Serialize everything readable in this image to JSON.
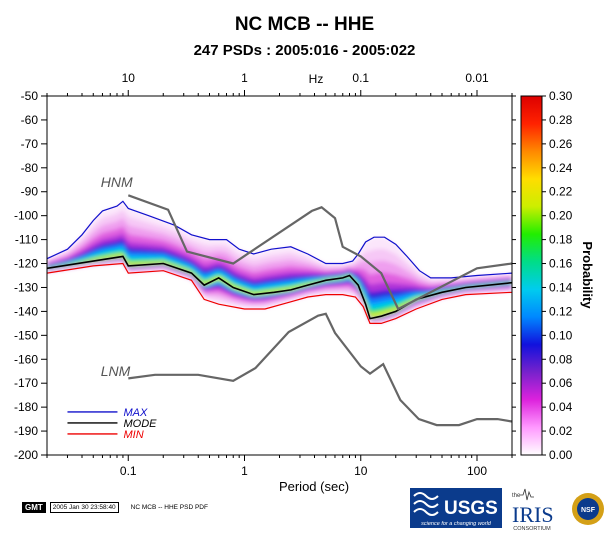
{
  "title": "NC MCB -- HHE",
  "subtitle": "247 PSDs : 2005:016 - 2005:022",
  "chart_data": {
    "type": "heatmap",
    "xlabel": "Period (sec)",
    "x_scale": "log",
    "xlim": [
      0.02,
      200
    ],
    "x_ticks": [
      0.1,
      1,
      10,
      100
    ],
    "x_tick_labels": [
      "0.1",
      "1",
      "10",
      "100"
    ],
    "top_axis_label": "Hz",
    "top_ticks_hz": [
      10,
      1,
      0.1,
      0.01
    ],
    "top_tick_labels": [
      "10",
      "1",
      "0.1",
      "0.01"
    ],
    "ylim": [
      -200,
      -50
    ],
    "y_ticks": [
      -50,
      -60,
      -70,
      -80,
      -90,
      -100,
      -110,
      -120,
      -130,
      -140,
      -150,
      -160,
      -170,
      -180,
      -190,
      -200
    ],
    "colorbar": {
      "label": "Probability",
      "range": [
        0,
        0.3
      ],
      "ticks": [
        "0.30",
        "0.28",
        "0.26",
        "0.24",
        "0.22",
        "0.20",
        "0.18",
        "0.16",
        "0.14",
        "0.12",
        "0.10",
        "0.08",
        "0.06",
        "0.04",
        "0.02",
        "0.00"
      ],
      "colors": [
        "#ffffff",
        "#ff99ff",
        "#dd22dd",
        "#7722cc",
        "#1111dd",
        "#0088ff",
        "#00ccee",
        "#00dd88",
        "#22ee00",
        "#ccee00",
        "#ffdd00",
        "#ff8800",
        "#ff2200",
        "#dd0000"
      ]
    },
    "annotations": [
      {
        "text": "HNM",
        "x": 0.058,
        "y": -88
      },
      {
        "text": "LNM",
        "x": 0.058,
        "y": -167
      }
    ],
    "legend": [
      {
        "name": "MAX",
        "color": "#1010cc"
      },
      {
        "name": "MODE",
        "color": "#000000"
      },
      {
        "name": "MIN",
        "color": "#ee0000"
      }
    ],
    "series": [
      {
        "name": "MAX",
        "color": "#1010cc",
        "points": [
          [
            0.02,
            -118
          ],
          [
            0.03,
            -114
          ],
          [
            0.04,
            -108
          ],
          [
            0.05,
            -102
          ],
          [
            0.06,
            -98
          ],
          [
            0.08,
            -96
          ],
          [
            0.09,
            -94
          ],
          [
            0.1,
            -97
          ],
          [
            0.15,
            -100
          ],
          [
            0.25,
            -104
          ],
          [
            0.35,
            -108
          ],
          [
            0.5,
            -110
          ],
          [
            0.7,
            -110
          ],
          [
            0.9,
            -114
          ],
          [
            1.2,
            -116
          ],
          [
            1.7,
            -114
          ],
          [
            2.5,
            -113
          ],
          [
            3.5,
            -116
          ],
          [
            5,
            -120
          ],
          [
            7,
            -120
          ],
          [
            8.5,
            -119
          ],
          [
            9.5,
            -116
          ],
          [
            11,
            -111
          ],
          [
            13,
            -109
          ],
          [
            16,
            -109
          ],
          [
            20,
            -112
          ],
          [
            25,
            -117
          ],
          [
            32,
            -123
          ],
          [
            40,
            -126
          ],
          [
            60,
            -126
          ],
          [
            100,
            -125
          ],
          [
            200,
            -124
          ]
        ]
      },
      {
        "name": "MODE",
        "color": "#000000",
        "points": [
          [
            0.02,
            -122
          ],
          [
            0.05,
            -119
          ],
          [
            0.09,
            -117
          ],
          [
            0.1,
            -121
          ],
          [
            0.2,
            -120
          ],
          [
            0.35,
            -124
          ],
          [
            0.45,
            -129
          ],
          [
            0.6,
            -126
          ],
          [
            0.8,
            -130
          ],
          [
            1.2,
            -133
          ],
          [
            1.8,
            -132
          ],
          [
            2.5,
            -131
          ],
          [
            3.5,
            -129
          ],
          [
            5,
            -127
          ],
          [
            7,
            -126
          ],
          [
            8,
            -125
          ],
          [
            9.5,
            -129
          ],
          [
            11,
            -137
          ],
          [
            12,
            -143
          ],
          [
            15,
            -142
          ],
          [
            20,
            -140
          ],
          [
            30,
            -135
          ],
          [
            50,
            -132
          ],
          [
            80,
            -130
          ],
          [
            200,
            -128
          ]
        ]
      },
      {
        "name": "MIN",
        "color": "#ee0000",
        "points": [
          [
            0.02,
            -124
          ],
          [
            0.05,
            -121
          ],
          [
            0.09,
            -120
          ],
          [
            0.1,
            -124
          ],
          [
            0.2,
            -123
          ],
          [
            0.35,
            -127
          ],
          [
            0.45,
            -135
          ],
          [
            0.6,
            -137
          ],
          [
            1,
            -139
          ],
          [
            1.5,
            -139
          ],
          [
            2.5,
            -136
          ],
          [
            3.5,
            -134
          ],
          [
            5,
            -133
          ],
          [
            7,
            -133
          ],
          [
            9,
            -134
          ],
          [
            10.5,
            -138
          ],
          [
            12,
            -145
          ],
          [
            15,
            -145
          ],
          [
            20,
            -143
          ],
          [
            30,
            -139
          ],
          [
            50,
            -135
          ],
          [
            80,
            -133
          ],
          [
            200,
            -132
          ]
        ]
      },
      {
        "name": "HNM",
        "color": "#666666",
        "points": [
          [
            0.1,
            -91.5
          ],
          [
            0.22,
            -97.5
          ],
          [
            0.32,
            -115
          ],
          [
            0.8,
            -120
          ],
          [
            3.8,
            -98
          ],
          [
            4.6,
            -96.5
          ],
          [
            6,
            -101
          ],
          [
            7,
            -113
          ],
          [
            10,
            -117
          ],
          [
            15,
            -124
          ],
          [
            21,
            -139
          ],
          [
            100,
            -122
          ],
          [
            200,
            -120
          ]
        ]
      },
      {
        "name": "LNM",
        "color": "#666666",
        "points": [
          [
            0.1,
            -168
          ],
          [
            0.17,
            -166.5
          ],
          [
            0.4,
            -166.5
          ],
          [
            0.8,
            -169
          ],
          [
            1.24,
            -163.7
          ],
          [
            2.4,
            -148.6
          ],
          [
            4.3,
            -141.8
          ],
          [
            5,
            -141
          ],
          [
            6,
            -149
          ],
          [
            10,
            -163
          ],
          [
            12,
            -166
          ],
          [
            15.6,
            -162
          ],
          [
            21.9,
            -177
          ],
          [
            31.6,
            -185
          ],
          [
            45,
            -187.5
          ],
          [
            70,
            -187.5
          ],
          [
            100,
            -185
          ],
          [
            150,
            -185
          ],
          [
            200,
            -186
          ]
        ]
      }
    ]
  },
  "footer": {
    "gmt_badge": "GMT",
    "timestamp": "2005 Jan 30 23:58:40",
    "caption": "NC MCB -- HHE PSD PDF"
  },
  "logos": {
    "usgs": "USGS",
    "usgs_tagline": "science for a changing world",
    "iris": "IRIS",
    "iris_the": "the",
    "iris_consortium": "CONSORTIUM",
    "nsf": "NSF"
  }
}
